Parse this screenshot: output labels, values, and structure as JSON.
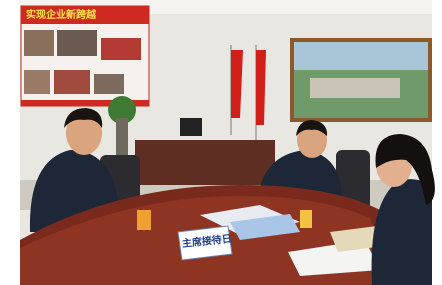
{
  "banner": {
    "text": "实现企业新跨越"
  },
  "nameplate": {
    "text": "主席接待日"
  }
}
